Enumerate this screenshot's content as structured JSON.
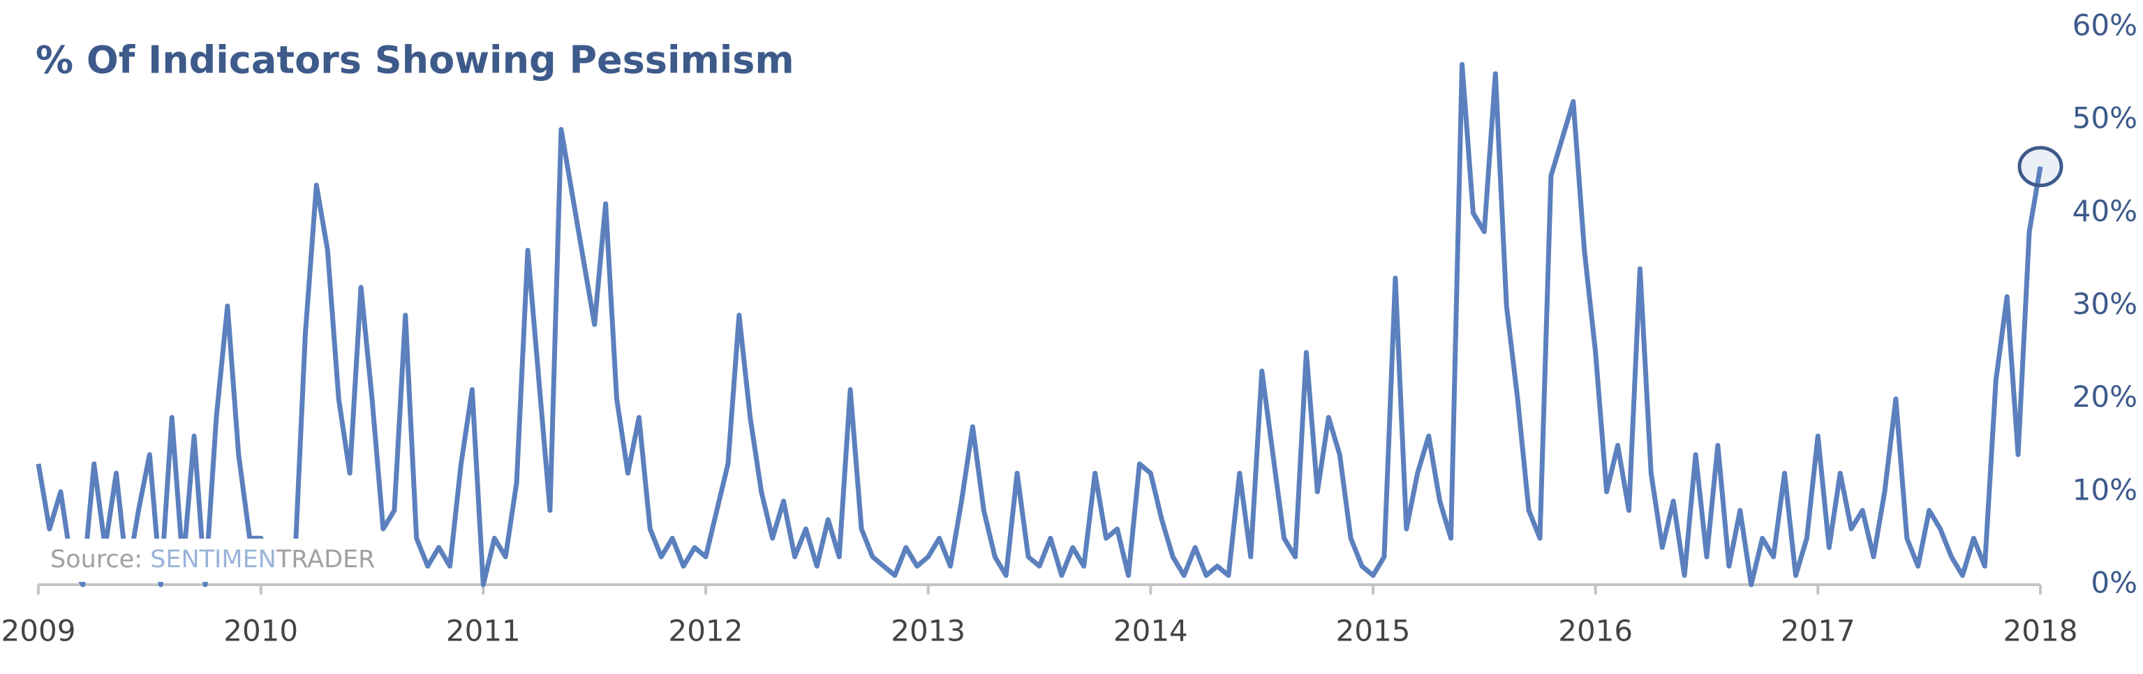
{
  "chart_data": {
    "type": "line",
    "title": "% Of Indicators Showing Pessimism",
    "source_label": "Source:",
    "source_name_1": "SENTIMEN",
    "source_name_2": "TRADER",
    "grid": false,
    "xlim": [
      2009,
      2018
    ],
    "xticks": [
      2009,
      2010,
      2011,
      2012,
      2013,
      2014,
      2015,
      2016,
      2017,
      2018
    ],
    "ylim": [
      0,
      60
    ],
    "yticks": [
      {
        "value": 0,
        "label": "0%"
      },
      {
        "value": 10,
        "label": "10%"
      },
      {
        "value": 20,
        "label": "20%"
      },
      {
        "value": 30,
        "label": "30%"
      },
      {
        "value": 40,
        "label": "40%"
      },
      {
        "value": 50,
        "label": "50%"
      },
      {
        "value": 60,
        "label": "60%"
      }
    ],
    "x": [
      2009,
      2009.05,
      2009.1,
      2009.15,
      2009.2,
      2009.25,
      2009.3,
      2009.35,
      2009.4,
      2009.45,
      2009.5,
      2009.55,
      2009.6,
      2009.65,
      2009.7,
      2009.75,
      2009.8,
      2009.85,
      2009.9,
      2009.95,
      2010,
      2010.05,
      2010.1,
      2010.15,
      2010.2,
      2010.25,
      2010.3,
      2010.35,
      2010.4,
      2010.45,
      2010.5,
      2010.55,
      2010.6,
      2010.65,
      2010.7,
      2010.75,
      2010.8,
      2010.85,
      2010.9,
      2010.95,
      2011,
      2011.05,
      2011.1,
      2011.15,
      2011.2,
      2011.25,
      2011.3,
      2011.35,
      2011.4,
      2011.45,
      2011.5,
      2011.55,
      2011.6,
      2011.65,
      2011.7,
      2011.75,
      2011.8,
      2011.85,
      2011.9,
      2011.95,
      2012,
      2012.05,
      2012.1,
      2012.15,
      2012.2,
      2012.25,
      2012.3,
      2012.35,
      2012.4,
      2012.45,
      2012.5,
      2012.55,
      2012.6,
      2012.65,
      2012.7,
      2012.75,
      2012.8,
      2012.85,
      2012.9,
      2012.95,
      2013,
      2013.05,
      2013.1,
      2013.15,
      2013.2,
      2013.25,
      2013.3,
      2013.35,
      2013.4,
      2013.45,
      2013.5,
      2013.55,
      2013.6,
      2013.65,
      2013.7,
      2013.75,
      2013.8,
      2013.85,
      2013.9,
      2013.95,
      2014,
      2014.05,
      2014.1,
      2014.15,
      2014.2,
      2014.25,
      2014.3,
      2014.35,
      2014.4,
      2014.45,
      2014.5,
      2014.55,
      2014.6,
      2014.65,
      2014.7,
      2014.75,
      2014.8,
      2014.85,
      2014.9,
      2014.95,
      2015,
      2015.05,
      2015.1,
      2015.15,
      2015.2,
      2015.25,
      2015.3,
      2015.35,
      2015.4,
      2015.45,
      2015.5,
      2015.55,
      2015.6,
      2015.65,
      2015.7,
      2015.75,
      2015.8,
      2015.85,
      2015.9,
      2015.95,
      2016,
      2016.05,
      2016.1,
      2016.15,
      2016.2,
      2016.25,
      2016.3,
      2016.35,
      2016.4,
      2016.45,
      2016.5,
      2016.55,
      2016.6,
      2016.65,
      2016.7,
      2016.75,
      2016.8,
      2016.85,
      2016.9,
      2016.95,
      2017,
      2017.05,
      2017.1,
      2017.15,
      2017.2,
      2017.25,
      2017.3,
      2017.35,
      2017.4,
      2017.45,
      2017.5,
      2017.55,
      2017.6,
      2017.65,
      2017.7,
      2017.75,
      2017.8,
      2017.85,
      2017.9,
      2017.95,
      2018
    ],
    "series": [
      {
        "color": "#5b80bd",
        "values": [
          13,
          6,
          10,
          2,
          0,
          13,
          4,
          12,
          1,
          8,
          14,
          0,
          18,
          2,
          16,
          0,
          18,
          30,
          14,
          5,
          5,
          3,
          2,
          1,
          27,
          43,
          36,
          20,
          12,
          32,
          20,
          6,
          8,
          29,
          5,
          2,
          4,
          2,
          13,
          21,
          0,
          5,
          3,
          11,
          36,
          22,
          8,
          49,
          42,
          35,
          28,
          41,
          20,
          12,
          18,
          6,
          3,
          5,
          2,
          4,
          3,
          8,
          13,
          29,
          18,
          10,
          5,
          9,
          3,
          6,
          2,
          7,
          3,
          21,
          6,
          3,
          2,
          1,
          4,
          2,
          3,
          5,
          2,
          9,
          17,
          8,
          3,
          1,
          12,
          3,
          2,
          5,
          1,
          4,
          2,
          12,
          5,
          6,
          1,
          13,
          12,
          7,
          3,
          1,
          4,
          1,
          2,
          1,
          12,
          3,
          23,
          14,
          5,
          3,
          25,
          10,
          18,
          14,
          5,
          2,
          1,
          3,
          33,
          6,
          12,
          16,
          9,
          5,
          56,
          40,
          38,
          55,
          30,
          20,
          8,
          5,
          44,
          48,
          52,
          36,
          25,
          10,
          15,
          8,
          34,
          12,
          4,
          9,
          1,
          14,
          3,
          15,
          2,
          8,
          0,
          5,
          3,
          12,
          1,
          5,
          16,
          4,
          12,
          6,
          8,
          3,
          10,
          20,
          5,
          2,
          8,
          6,
          3,
          1,
          5,
          2,
          22,
          31,
          14,
          38,
          45
        ]
      }
    ]
  }
}
